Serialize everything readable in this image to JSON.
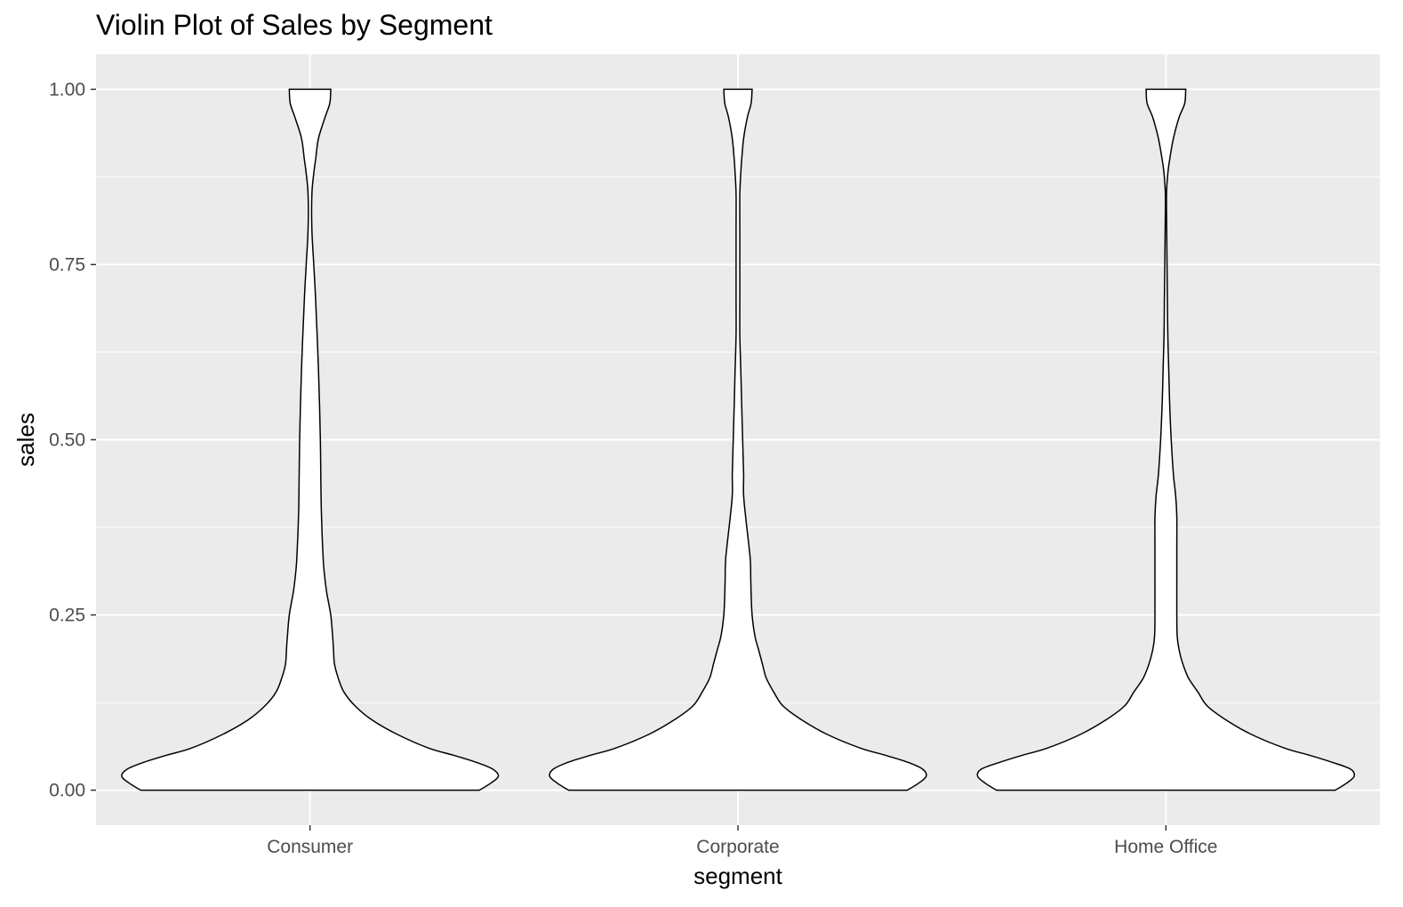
{
  "chart_data": {
    "type": "violin",
    "title": "Violin Plot of Sales by Segment",
    "xlabel": "segment",
    "ylabel": "sales",
    "ylim": [
      -0.05,
      1.05
    ],
    "yticks": [
      0.0,
      0.25,
      0.5,
      0.75,
      1.0
    ],
    "ytick_labels": [
      "0.00",
      "0.25",
      "0.50",
      "0.75",
      "1.00"
    ],
    "categories": [
      "Consumer",
      "Corporate",
      "Home Office"
    ],
    "grid": true,
    "background": "#ebebeb",
    "gridline_color": "#ffffff",
    "violin_fill": "#ffffff",
    "violin_stroke": "#000000",
    "series": [
      {
        "category": "Consumer",
        "density_y": [
          0.0,
          0.01,
          0.02,
          0.03,
          0.04,
          0.05,
          0.06,
          0.08,
          0.1,
          0.12,
          0.14,
          0.16,
          0.18,
          0.2,
          0.22,
          0.25,
          0.28,
          0.3,
          0.33,
          0.4,
          0.5,
          0.6,
          0.7,
          0.75,
          0.8,
          0.85,
          0.88,
          0.9,
          0.93,
          0.96,
          0.98,
          1.0
        ],
        "half_width": [
          0.9,
          0.96,
          1.0,
          0.97,
          0.88,
          0.76,
          0.63,
          0.46,
          0.33,
          0.24,
          0.18,
          0.15,
          0.13,
          0.125,
          0.12,
          0.11,
          0.09,
          0.08,
          0.07,
          0.06,
          0.055,
          0.045,
          0.03,
          0.02,
          0.01,
          0.01,
          0.02,
          0.03,
          0.045,
          0.08,
          0.105,
          0.11
        ]
      },
      {
        "category": "Corporate",
        "density_y": [
          0.0,
          0.01,
          0.02,
          0.03,
          0.04,
          0.05,
          0.06,
          0.08,
          0.1,
          0.12,
          0.14,
          0.16,
          0.18,
          0.2,
          0.22,
          0.25,
          0.28,
          0.3,
          0.33,
          0.38,
          0.42,
          0.45,
          0.5,
          0.55,
          0.6,
          0.65,
          0.7,
          0.75,
          0.8,
          0.85,
          0.88,
          0.9,
          0.93,
          0.96,
          0.98,
          1.0
        ],
        "half_width": [
          0.9,
          0.96,
          1.0,
          0.98,
          0.9,
          0.78,
          0.65,
          0.47,
          0.34,
          0.24,
          0.19,
          0.15,
          0.13,
          0.11,
          0.09,
          0.075,
          0.07,
          0.068,
          0.065,
          0.045,
          0.03,
          0.03,
          0.025,
          0.02,
          0.015,
          0.01,
          0.01,
          0.01,
          0.01,
          0.01,
          0.015,
          0.02,
          0.03,
          0.05,
          0.07,
          0.075
        ]
      },
      {
        "category": "Home Office",
        "density_y": [
          0.0,
          0.01,
          0.02,
          0.03,
          0.04,
          0.05,
          0.06,
          0.08,
          0.1,
          0.12,
          0.14,
          0.16,
          0.18,
          0.2,
          0.22,
          0.25,
          0.3,
          0.35,
          0.39,
          0.42,
          0.45,
          0.5,
          0.55,
          0.6,
          0.65,
          0.7,
          0.75,
          0.8,
          0.85,
          0.88,
          0.9,
          0.93,
          0.96,
          0.98,
          1.0
        ],
        "half_width": [
          0.9,
          0.96,
          1.0,
          0.98,
          0.88,
          0.76,
          0.63,
          0.45,
          0.32,
          0.22,
          0.17,
          0.12,
          0.09,
          0.07,
          0.06,
          0.058,
          0.058,
          0.058,
          0.058,
          0.052,
          0.04,
          0.028,
          0.02,
          0.015,
          0.01,
          0.008,
          0.006,
          0.004,
          0.003,
          0.01,
          0.02,
          0.04,
          0.07,
          0.1,
          0.105
        ]
      }
    ]
  }
}
